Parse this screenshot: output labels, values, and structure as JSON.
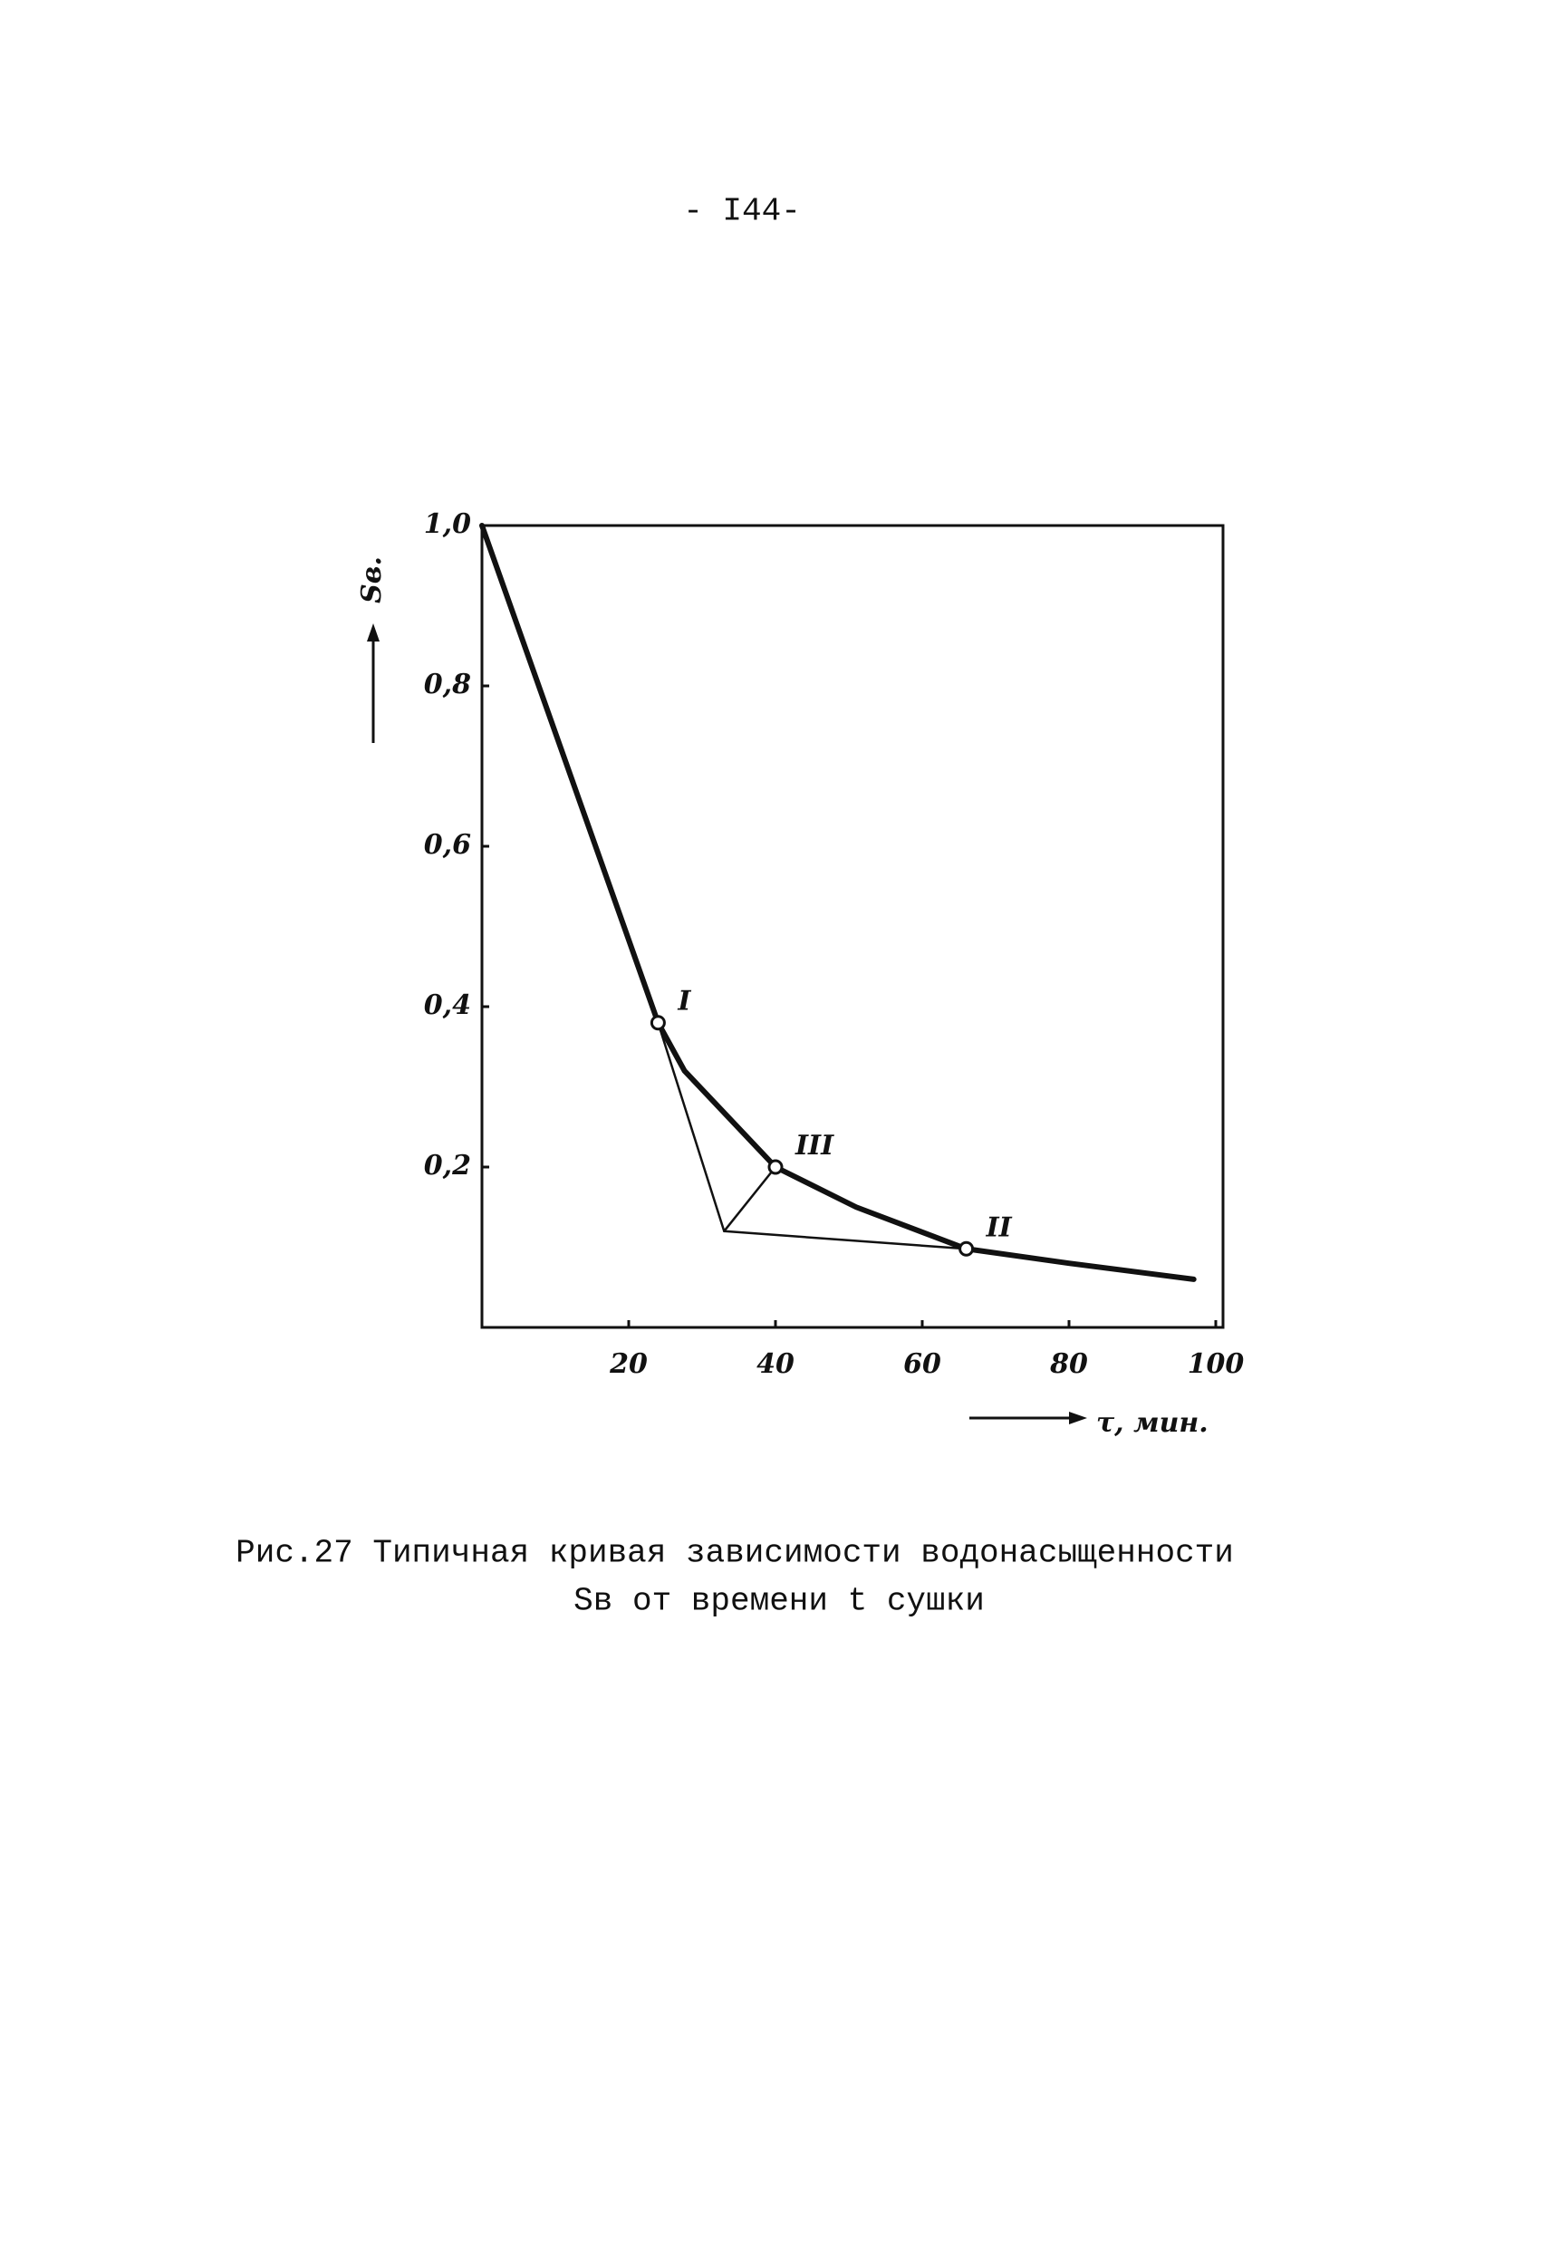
{
  "page_number": "- I44-",
  "chart_data": {
    "type": "line",
    "ylabel": "Sв.",
    "xlabel": "τ, мин.",
    "xlim": [
      0,
      100
    ],
    "ylim": [
      0,
      1.0
    ],
    "xticks": [
      20,
      40,
      60,
      80,
      100
    ],
    "yticks": [
      {
        "value": 0.2,
        "label": "0,2"
      },
      {
        "value": 0.4,
        "label": "0,4"
      },
      {
        "value": 0.6,
        "label": "0,6"
      },
      {
        "value": 0.8,
        "label": "0,8"
      },
      {
        "value": 1.0,
        "label": "1,0"
      }
    ],
    "series": [
      {
        "color": "#111111",
        "x": [
          0,
          24,
          27.6,
          40,
          51,
          66,
          80,
          97
        ],
        "values": [
          1.0,
          0.38,
          0.32,
          0.2,
          0.15,
          0.098,
          0.08,
          0.06
        ]
      },
      {
        "color": "#111111",
        "x": [
          24,
          33,
          40
        ],
        "values": [
          0.38,
          0.12,
          0.2
        ]
      },
      {
        "color": "#111111",
        "x": [
          33,
          66
        ],
        "values": [
          0.12,
          0.098
        ]
      }
    ],
    "annotations": [
      {
        "text": "I",
        "x": 24,
        "y": 0.38
      },
      {
        "text": "III",
        "x": 40,
        "y": 0.2
      },
      {
        "text": "II",
        "x": 66,
        "y": 0.098
      }
    ]
  },
  "caption": [
    "Рис.27 Типичная кривая зависимости водонасыщенности",
    "Sв от времени t сушки"
  ]
}
